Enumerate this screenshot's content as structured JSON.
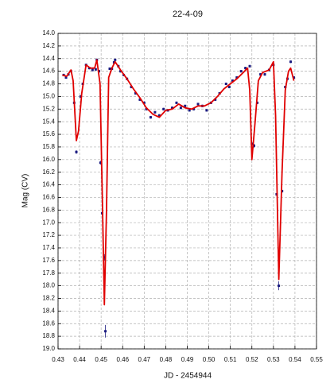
{
  "chart_data": {
    "type": "scatter",
    "title": "22-4-09",
    "xlabel": "JD - 2454944",
    "ylabel": "Mag (CV)",
    "xlim": [
      0.43,
      0.55
    ],
    "ylim": [
      14.0,
      19.0
    ],
    "y_inverted": true,
    "grid": true,
    "xticks": [
      0.43,
      0.44,
      0.45,
      0.46,
      0.47,
      0.48,
      0.49,
      {
        "value": 0.5,
        "label": "0.50"
      },
      0.51,
      0.52,
      0.53,
      0.54,
      0.55
    ],
    "yticks": [
      {
        "value": 14,
        "label": "14.0"
      },
      14.2,
      14.4,
      14.6,
      14.8,
      {
        "value": 15,
        "label": "15.0"
      },
      15.2,
      15.4,
      15.6,
      15.8,
      {
        "value": 16,
        "label": "16.0"
      },
      16.2,
      16.4,
      16.6,
      16.8,
      {
        "value": 17,
        "label": "17.0"
      },
      17.2,
      17.4,
      17.6,
      17.8,
      {
        "value": 18,
        "label": "18.0"
      },
      18.2,
      18.4,
      18.6,
      18.8,
      {
        "value": 19,
        "label": "19.0"
      }
    ],
    "points": {
      "color": "#1a1a80",
      "x": [
        0.4326,
        0.4337,
        0.4348,
        0.436,
        0.4375,
        0.4385,
        0.4405,
        0.4415,
        0.443,
        0.4445,
        0.446,
        0.4475,
        0.448,
        0.449,
        0.4497,
        0.4505,
        0.4515,
        0.452,
        0.454,
        0.455,
        0.456,
        0.4565,
        0.458,
        0.459,
        0.4605,
        0.462,
        0.464,
        0.466,
        0.468,
        0.47,
        0.471,
        0.473,
        0.475,
        0.477,
        0.479,
        0.481,
        0.483,
        0.485,
        0.487,
        0.489,
        0.491,
        0.493,
        0.495,
        0.497,
        0.499,
        0.501,
        0.503,
        0.505,
        0.508,
        0.5095,
        0.511,
        0.513,
        0.515,
        0.517,
        0.519,
        0.52,
        0.521,
        0.5225,
        0.524,
        0.526,
        0.528,
        0.53,
        0.5315,
        0.5325,
        0.534,
        0.5355,
        0.5365,
        0.538,
        0.5395
      ],
      "values": [
        14.66,
        14.7,
        14.65,
        14.6,
        15.1,
        15.88,
        15.0,
        14.8,
        14.5,
        14.55,
        14.58,
        14.57,
        14.42,
        14.6,
        16.05,
        16.85,
        17.55,
        18.72,
        14.56,
        14.56,
        14.46,
        14.42,
        14.52,
        14.6,
        14.66,
        14.72,
        14.85,
        14.95,
        15.05,
        15.1,
        15.2,
        15.33,
        15.25,
        15.3,
        15.2,
        15.22,
        15.18,
        15.1,
        15.18,
        15.15,
        15.22,
        15.2,
        15.12,
        15.15,
        15.22,
        15.1,
        15.05,
        14.95,
        14.8,
        14.85,
        14.75,
        14.7,
        14.6,
        14.55,
        14.52,
        15.75,
        15.78,
        15.1,
        14.65,
        14.65,
        14.58,
        14.5,
        16.55,
        18.0,
        16.5,
        14.85,
        14.72,
        14.45,
        14.7
      ],
      "errors": [
        0.02,
        0.02,
        0.02,
        0.02,
        0.02,
        0.03,
        0.02,
        0.02,
        0.02,
        0.02,
        0.02,
        0.02,
        0.02,
        0.02,
        0.03,
        0.03,
        0.05,
        0.1,
        0.02,
        0.02,
        0.02,
        0.02,
        0.02,
        0.02,
        0.02,
        0.02,
        0.02,
        0.02,
        0.02,
        0.02,
        0.02,
        0.02,
        0.02,
        0.02,
        0.02,
        0.02,
        0.02,
        0.02,
        0.02,
        0.02,
        0.02,
        0.02,
        0.02,
        0.02,
        0.02,
        0.02,
        0.02,
        0.02,
        0.02,
        0.02,
        0.02,
        0.02,
        0.02,
        0.02,
        0.02,
        0.03,
        0.03,
        0.02,
        0.02,
        0.02,
        0.02,
        0.02,
        0.03,
        0.07,
        0.03,
        0.02,
        0.02,
        0.02,
        0.02
      ]
    },
    "model": {
      "color": "#e00000",
      "x": [
        0.432,
        0.434,
        0.436,
        0.437,
        0.4385,
        0.4395,
        0.441,
        0.443,
        0.445,
        0.447,
        0.448,
        0.4495,
        0.4505,
        0.4515,
        0.4525,
        0.4535,
        0.455,
        0.4565,
        0.459,
        0.462,
        0.465,
        0.468,
        0.471,
        0.474,
        0.477,
        0.48,
        0.483,
        0.486,
        0.489,
        0.492,
        0.495,
        0.498,
        0.501,
        0.504,
        0.507,
        0.51,
        0.513,
        0.516,
        0.518,
        0.519,
        0.52,
        0.5215,
        0.523,
        0.525,
        0.528,
        0.53,
        0.531,
        0.5325,
        0.534,
        0.5355,
        0.537,
        0.538,
        0.5395
      ],
      "values": [
        14.66,
        14.68,
        14.58,
        14.75,
        15.7,
        15.55,
        14.95,
        14.5,
        14.55,
        14.55,
        14.42,
        14.8,
        16.5,
        18.3,
        16.8,
        14.7,
        14.55,
        14.45,
        14.58,
        14.72,
        14.88,
        15.02,
        15.18,
        15.28,
        15.33,
        15.22,
        15.2,
        15.12,
        15.18,
        15.2,
        15.15,
        15.15,
        15.1,
        15.0,
        14.88,
        14.8,
        14.72,
        14.62,
        14.55,
        14.9,
        16.0,
        15.4,
        14.75,
        14.62,
        14.58,
        14.45,
        15.3,
        17.9,
        16.2,
        14.9,
        14.6,
        14.55,
        14.75
      ]
    }
  }
}
